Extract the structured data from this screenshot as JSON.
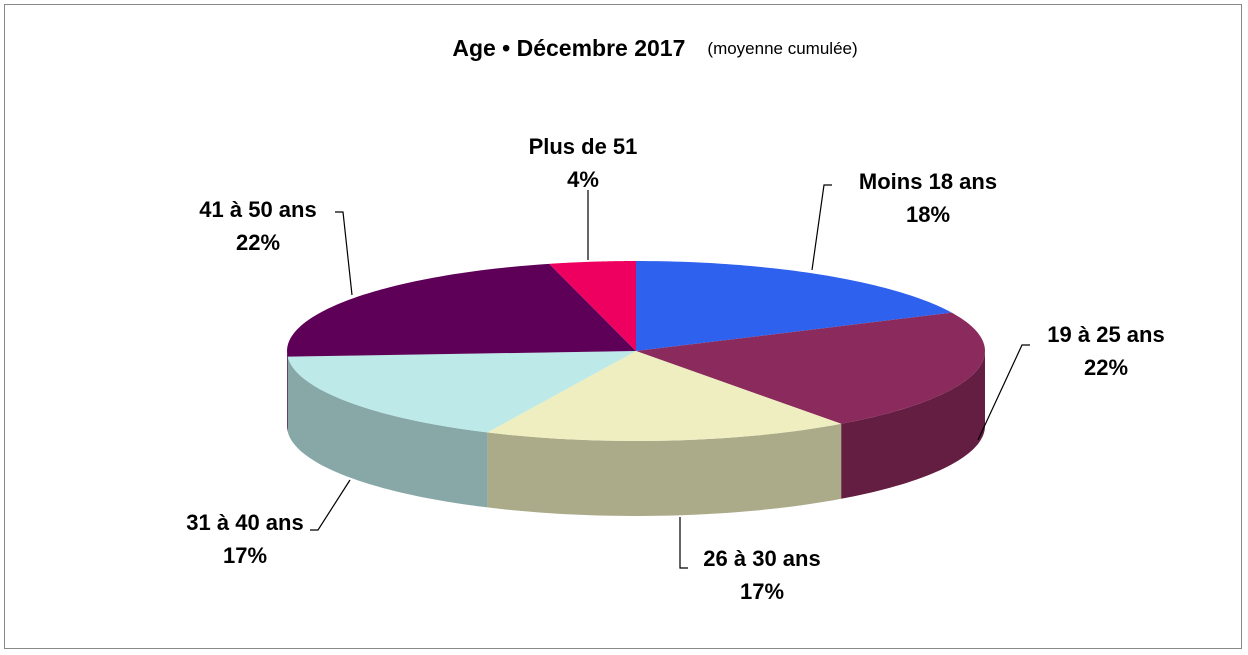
{
  "chart_data": {
    "type": "pie",
    "title": "Age • Décembre 2017",
    "subtitle": "(moyenne cumulée)",
    "categories": [
      "Moins 18 ans",
      "19 à 25 ans",
      "26 à 30 ans",
      "31 à 40 ans",
      "41 à 50 ans",
      "Plus de 51"
    ],
    "values": [
      18,
      22,
      17,
      17,
      22,
      4
    ],
    "value_labels": [
      "18%",
      "22%",
      "17%",
      "17%",
      "22%",
      "4%"
    ],
    "colors": [
      "#2e62ee",
      "#8b2a5c",
      "#eeeec0",
      "#bde9e9",
      "#5e0058",
      "#ee0060"
    ]
  }
}
